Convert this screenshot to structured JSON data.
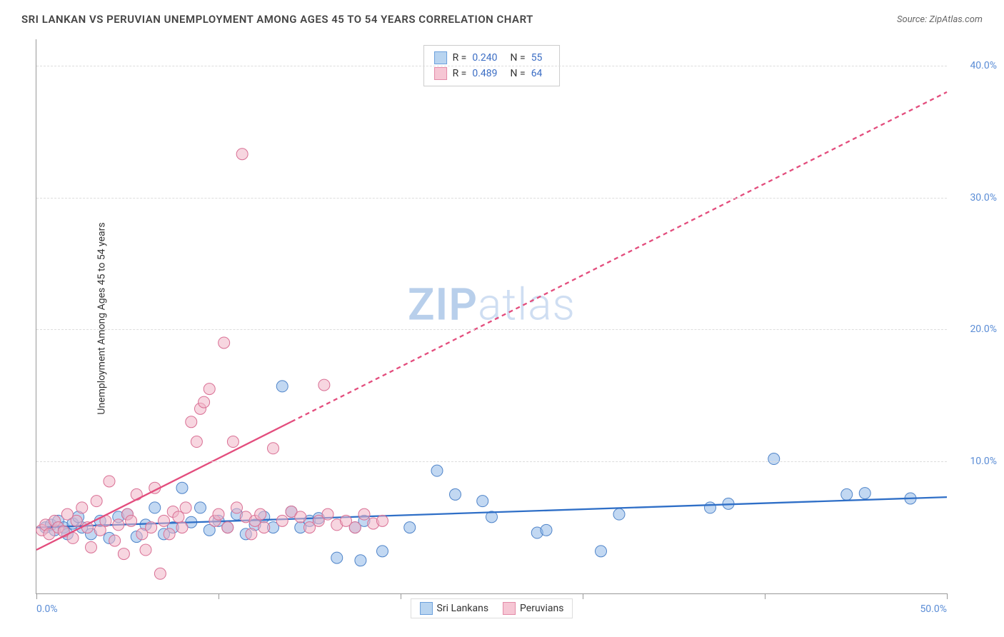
{
  "title": "SRI LANKAN VS PERUVIAN UNEMPLOYMENT AMONG AGES 45 TO 54 YEARS CORRELATION CHART",
  "source_label": "Source: ZipAtlas.com",
  "y_axis_label": "Unemployment Among Ages 45 to 54 years",
  "watermark": {
    "bold": "ZIP",
    "light": "atlas"
  },
  "chart": {
    "type": "scatter",
    "xlim": [
      0,
      50
    ],
    "ylim": [
      0,
      42
    ],
    "x_ticks": [
      0,
      10,
      20,
      30,
      40,
      50
    ],
    "x_tick_labels_shown": {
      "0": "0.0%",
      "50": "50.0%"
    },
    "y_ticks": [
      10,
      20,
      30,
      40
    ],
    "y_tick_labels": {
      "10": "10.0%",
      "20": "20.0%",
      "30": "30.0%",
      "40": "40.0%"
    },
    "grid_color": "#dddddd",
    "background": "#ffffff",
    "axis_color": "#999999",
    "label_color": "#5b8dd6",
    "marker_radius": 8,
    "marker_opacity": 0.55,
    "stats_legend": [
      {
        "swatch_fill": "#b8d4f0",
        "swatch_stroke": "#6ca0dc",
        "r": "0.240",
        "n": "55"
      },
      {
        "swatch_fill": "#f6c6d4",
        "swatch_stroke": "#e38ba8",
        "r": "0.489",
        "n": "64"
      }
    ],
    "series_legend": [
      {
        "label": "Sri Lankans",
        "swatch_fill": "#b8d4f0",
        "swatch_stroke": "#6ca0dc"
      },
      {
        "label": "Peruvians",
        "swatch_fill": "#f6c6d4",
        "swatch_stroke": "#e38ba8"
      }
    ],
    "series": [
      {
        "name": "Sri Lankans",
        "color_fill": "#8fb8e8",
        "color_stroke": "#4f84c9",
        "trend": {
          "x1": 0,
          "y1": 5.0,
          "x2": 50,
          "y2": 7.3,
          "stroke": "#2f6fc7",
          "width": 2.3,
          "dash": ""
        },
        "points": [
          [
            0.5,
            5.0
          ],
          [
            0.8,
            5.2
          ],
          [
            1.0,
            4.8
          ],
          [
            1.2,
            5.5
          ],
          [
            1.5,
            5.0
          ],
          [
            1.7,
            4.5
          ],
          [
            2.0,
            5.3
          ],
          [
            2.3,
            5.8
          ],
          [
            2.5,
            5.0
          ],
          [
            3.0,
            4.5
          ],
          [
            3.5,
            5.5
          ],
          [
            4.0,
            4.2
          ],
          [
            4.5,
            5.8
          ],
          [
            5.0,
            6.0
          ],
          [
            5.5,
            4.3
          ],
          [
            6.0,
            5.2
          ],
          [
            6.5,
            6.5
          ],
          [
            7.0,
            4.5
          ],
          [
            7.5,
            5.0
          ],
          [
            8.0,
            8.0
          ],
          [
            8.5,
            5.4
          ],
          [
            9.0,
            6.5
          ],
          [
            9.5,
            4.8
          ],
          [
            10.0,
            5.5
          ],
          [
            10.5,
            5.0
          ],
          [
            11.0,
            6.0
          ],
          [
            11.5,
            4.5
          ],
          [
            12.0,
            5.2
          ],
          [
            12.5,
            5.8
          ],
          [
            13.0,
            5.0
          ],
          [
            13.5,
            15.7
          ],
          [
            14.0,
            6.2
          ],
          [
            14.5,
            5.0
          ],
          [
            15.0,
            5.5
          ],
          [
            15.5,
            5.7
          ],
          [
            16.5,
            2.7
          ],
          [
            17.5,
            5.0
          ],
          [
            17.8,
            2.5
          ],
          [
            18.0,
            5.5
          ],
          [
            19.0,
            3.2
          ],
          [
            20.5,
            5.0
          ],
          [
            22.0,
            9.3
          ],
          [
            23.0,
            7.5
          ],
          [
            24.5,
            7.0
          ],
          [
            25.0,
            5.8
          ],
          [
            27.5,
            4.6
          ],
          [
            28.0,
            4.8
          ],
          [
            31.0,
            3.2
          ],
          [
            32.0,
            6.0
          ],
          [
            37.0,
            6.5
          ],
          [
            38.0,
            6.8
          ],
          [
            40.5,
            10.2
          ],
          [
            44.5,
            7.5
          ],
          [
            45.5,
            7.6
          ],
          [
            48.0,
            7.2
          ]
        ]
      },
      {
        "name": "Peruvians",
        "color_fill": "#f0b4c6",
        "color_stroke": "#d96f94",
        "trend": {
          "x1": 0,
          "y1": 3.3,
          "x2": 50,
          "y2": 38.0,
          "stroke": "#e34d7d",
          "width": 2.3,
          "dash": "6 5",
          "solid_to_x": 14
        },
        "points": [
          [
            0.3,
            4.8
          ],
          [
            0.5,
            5.2
          ],
          [
            0.7,
            4.5
          ],
          [
            1.0,
            5.5
          ],
          [
            1.2,
            5.0
          ],
          [
            1.5,
            4.7
          ],
          [
            1.7,
            6.0
          ],
          [
            2.0,
            4.2
          ],
          [
            2.2,
            5.5
          ],
          [
            2.5,
            6.5
          ],
          [
            2.8,
            5.0
          ],
          [
            3.0,
            3.5
          ],
          [
            3.3,
            7.0
          ],
          [
            3.5,
            4.8
          ],
          [
            3.8,
            5.5
          ],
          [
            4.0,
            8.5
          ],
          [
            4.3,
            4.0
          ],
          [
            4.5,
            5.2
          ],
          [
            4.8,
            3.0
          ],
          [
            5.0,
            6.0
          ],
          [
            5.2,
            5.5
          ],
          [
            5.5,
            7.5
          ],
          [
            5.8,
            4.5
          ],
          [
            6.0,
            3.3
          ],
          [
            6.3,
            5.0
          ],
          [
            6.5,
            8.0
          ],
          [
            6.8,
            1.5
          ],
          [
            7.0,
            5.5
          ],
          [
            7.3,
            4.5
          ],
          [
            7.5,
            6.2
          ],
          [
            7.8,
            5.8
          ],
          [
            8.0,
            5.0
          ],
          [
            8.2,
            6.5
          ],
          [
            8.5,
            13.0
          ],
          [
            8.8,
            11.5
          ],
          [
            9.0,
            14.0
          ],
          [
            9.2,
            14.5
          ],
          [
            9.5,
            15.5
          ],
          [
            9.8,
            5.5
          ],
          [
            10.0,
            6.0
          ],
          [
            10.3,
            19.0
          ],
          [
            10.5,
            5.0
          ],
          [
            10.8,
            11.5
          ],
          [
            11.0,
            6.5
          ],
          [
            11.3,
            33.3
          ],
          [
            11.5,
            5.8
          ],
          [
            11.8,
            4.5
          ],
          [
            12.0,
            5.5
          ],
          [
            12.3,
            6.0
          ],
          [
            12.5,
            5.0
          ],
          [
            13.0,
            11.0
          ],
          [
            13.5,
            5.5
          ],
          [
            14.0,
            6.2
          ],
          [
            14.5,
            5.8
          ],
          [
            15.0,
            5.0
          ],
          [
            15.5,
            5.5
          ],
          [
            15.8,
            15.8
          ],
          [
            16.0,
            6.0
          ],
          [
            16.5,
            5.2
          ],
          [
            17.0,
            5.5
          ],
          [
            17.5,
            5.0
          ],
          [
            18.0,
            6.0
          ],
          [
            18.5,
            5.3
          ],
          [
            19.0,
            5.5
          ]
        ]
      }
    ]
  }
}
